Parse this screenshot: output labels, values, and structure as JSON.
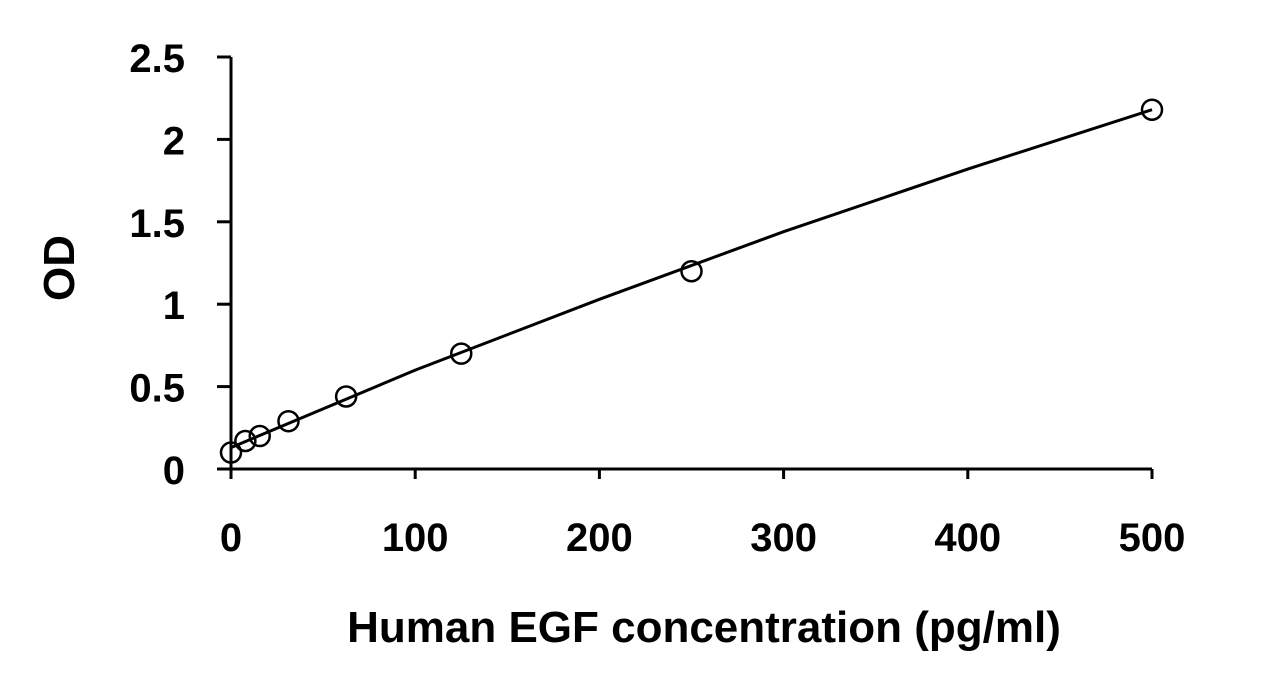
{
  "chart_data": {
    "type": "scatter",
    "title": "",
    "xlabel": "Human EGF concentration (pg/ml)",
    "ylabel": "OD",
    "xlim": [
      0,
      500
    ],
    "ylim": [
      0,
      2.5
    ],
    "xticks": [
      "0",
      "100",
      "200",
      "300",
      "400",
      "500"
    ],
    "yticks": [
      "0",
      "0.5",
      "1",
      "1.5",
      "2",
      "2.5"
    ],
    "grid": false,
    "legend": "none",
    "series": [
      {
        "marker": "open-circle",
        "points": [
          {
            "x": 0,
            "y": 0.1
          },
          {
            "x": 7.8,
            "y": 0.17
          },
          {
            "x": 15.6,
            "y": 0.2
          },
          {
            "x": 31.2,
            "y": 0.29
          },
          {
            "x": 62.5,
            "y": 0.44
          },
          {
            "x": 125,
            "y": 0.7
          },
          {
            "x": 250,
            "y": 1.2
          },
          {
            "x": 500,
            "y": 2.18
          }
        ]
      }
    ],
    "fit_curve": {
      "points": [
        {
          "x": 0,
          "y": 0.13
        },
        {
          "x": 100,
          "y": 0.6
        },
        {
          "x": 200,
          "y": 1.03
        },
        {
          "x": 300,
          "y": 1.44
        },
        {
          "x": 400,
          "y": 1.82
        },
        {
          "x": 500,
          "y": 2.18
        }
      ]
    },
    "colors": {
      "axis": "#000000",
      "marker": "#000000",
      "curve": "#000000"
    }
  }
}
